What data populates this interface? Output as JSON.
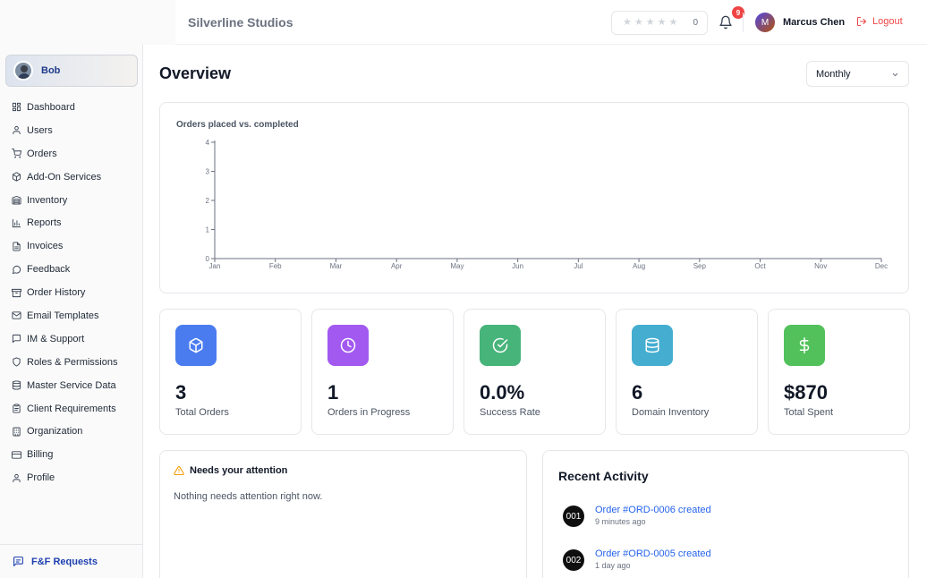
{
  "sidebar": {
    "user": {
      "name": "Bob"
    },
    "items": [
      {
        "label": "Dashboard",
        "icon": "grid-icon"
      },
      {
        "label": "Users",
        "icon": "user-icon"
      },
      {
        "label": "Orders",
        "icon": "cart-icon"
      },
      {
        "label": "Add-On Services",
        "icon": "package-icon"
      },
      {
        "label": "Inventory",
        "icon": "warehouse-icon"
      },
      {
        "label": "Reports",
        "icon": "bar-chart-icon"
      },
      {
        "label": "Invoices",
        "icon": "file-text-icon"
      },
      {
        "label": "Feedback",
        "icon": "message-circle-icon"
      },
      {
        "label": "Order History",
        "icon": "archive-icon"
      },
      {
        "label": "Email Templates",
        "icon": "mail-icon"
      },
      {
        "label": "IM & Support",
        "icon": "message-square-icon"
      },
      {
        "label": "Roles & Permissions",
        "icon": "shield-icon"
      },
      {
        "label": "Master Service Data",
        "icon": "database-icon"
      },
      {
        "label": "Client Requirements",
        "icon": "clipboard-icon"
      },
      {
        "label": "Organization",
        "icon": "building-icon"
      },
      {
        "label": "Billing",
        "icon": "credit-card-icon"
      },
      {
        "label": "Profile",
        "icon": "user-icon"
      }
    ],
    "footer": {
      "label": "F&F Requests",
      "icon": "message-lines-icon"
    }
  },
  "header": {
    "brand": "Silverline Studios",
    "rating": {
      "stars": 5,
      "filled": 0,
      "count": "0"
    },
    "notifications": {
      "count": "9"
    },
    "user": {
      "initial": "M",
      "name": "Marcus Chen"
    },
    "logout_label": "Logout"
  },
  "main": {
    "title": "Overview",
    "period": "Monthly",
    "chart_title": "Orders placed vs. completed",
    "stats": [
      {
        "value": "3",
        "label": "Total Orders",
        "color": "#4a7cf0",
        "icon": "box-icon"
      },
      {
        "value": "1",
        "label": "Orders in Progress",
        "color": "#a259f0",
        "icon": "clock-icon"
      },
      {
        "value": "0.0%",
        "label": "Success Rate",
        "color": "#47b47a",
        "icon": "check-circle-icon"
      },
      {
        "value": "6",
        "label": "Domain Inventory",
        "color": "#45aed0",
        "icon": "database-icon"
      },
      {
        "value": "$870",
        "label": "Total Spent",
        "color": "#52c15b",
        "icon": "dollar-icon"
      }
    ],
    "attention": {
      "title": "Needs your attention",
      "empty_text": "Nothing needs attention right now."
    },
    "activity": {
      "title": "Recent Activity",
      "items": [
        {
          "badge": "001",
          "text": "Order #ORD-0006 created",
          "time": "9 minutes ago"
        },
        {
          "badge": "002",
          "text": "Order #ORD-0005 created",
          "time": "1 day ago"
        }
      ]
    }
  },
  "chart_data": {
    "type": "line",
    "title": "Orders placed vs. completed",
    "categories": [
      "Jan",
      "Feb",
      "Mar",
      "Apr",
      "May",
      "Jun",
      "Jul",
      "Aug",
      "Sep",
      "Oct",
      "Nov",
      "Dec"
    ],
    "yticks": [
      "0",
      "1",
      "2",
      "3",
      "4"
    ],
    "ylim": [
      0,
      4
    ],
    "series": [],
    "grid": false
  }
}
